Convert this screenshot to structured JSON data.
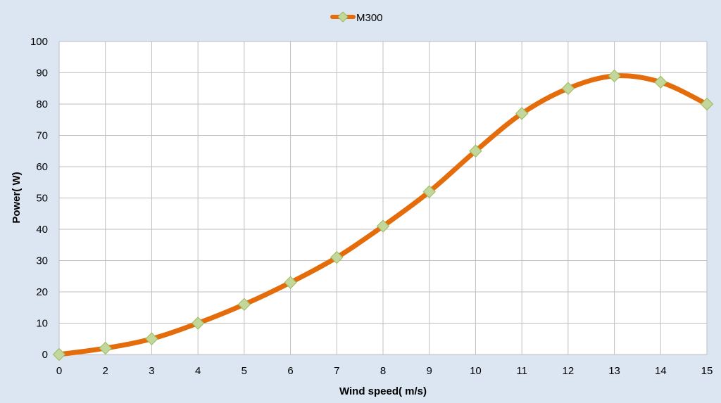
{
  "chart_data": {
    "type": "line",
    "smooth": true,
    "x": [
      0,
      2,
      3,
      4,
      5,
      6,
      7,
      8,
      9,
      10,
      11,
      12,
      13,
      14,
      15
    ],
    "x_tick_labels": [
      "0",
      "2",
      "3",
      "4",
      "5",
      "6",
      "7",
      "8",
      "9",
      "10",
      "11",
      "12",
      "13",
      "14",
      "15"
    ],
    "series": [
      {
        "name": "M300",
        "values": [
          0,
          2,
          5,
          10,
          16,
          23,
          31,
          41,
          52,
          65,
          77,
          85,
          89,
          87,
          80
        ],
        "line_color": "#e46c0a",
        "marker": "diamond",
        "marker_fill": "#c3d69b",
        "marker_stroke": "#9bbb59"
      }
    ],
    "xlabel": "Wind speed( m/s)",
    "ylabel": "Power( W)",
    "ylim": [
      0,
      100
    ],
    "y_ticks": [
      0,
      10,
      20,
      30,
      40,
      50,
      60,
      70,
      80,
      90,
      100
    ],
    "grid": true,
    "legend_position": "top",
    "colors": {
      "background": "#dce6f2",
      "plot_area": "#ffffff",
      "grid": "#bfbfbf"
    }
  }
}
